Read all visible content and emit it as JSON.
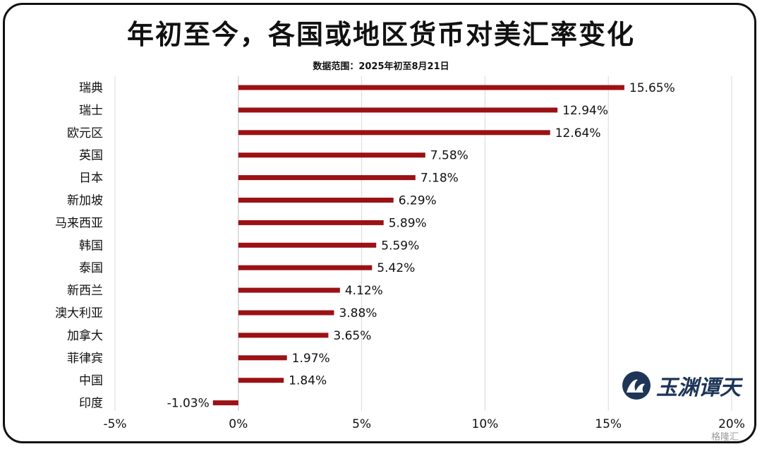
{
  "header": {
    "title": "年初至今，各国或地区货币对美汇率变化",
    "subtitle": "数据范围：2025年初至8月21日"
  },
  "brand": {
    "logo_text": "玉渊谭天",
    "watermark": "格隆汇"
  },
  "colors": {
    "bar": "#9b1114",
    "grid": "#d9d9d9",
    "text": "#111111",
    "logo": "#1e3557"
  },
  "chart_data": {
    "type": "bar",
    "orientation": "horizontal",
    "title": "年初至今，各国或地区货币对美汇率变化",
    "subtitle": "数据范围：2025年初至8月21日",
    "categories": [
      "瑞典",
      "瑞士",
      "欧元区",
      "英国",
      "日本",
      "新加坡",
      "马来西亚",
      "韩国",
      "泰国",
      "新西兰",
      "澳大利亚",
      "加拿大",
      "菲律宾",
      "中国",
      "印度"
    ],
    "values": [
      15.65,
      12.94,
      12.64,
      7.58,
      7.18,
      6.29,
      5.89,
      5.59,
      5.42,
      4.12,
      3.88,
      3.65,
      1.97,
      1.84,
      -1.03
    ],
    "value_labels": [
      "15.65%",
      "12.94%",
      "12.64%",
      "7.58%",
      "7.18%",
      "6.29%",
      "5.89%",
      "5.59%",
      "5.42%",
      "4.12%",
      "3.88%",
      "3.65%",
      "1.97%",
      "1.84%",
      "-1.03%"
    ],
    "xlim": [
      -5,
      20
    ],
    "xticks": [
      -5,
      0,
      5,
      10,
      15,
      20
    ],
    "xtick_labels": [
      "-5%",
      "0%",
      "5%",
      "10%",
      "15%",
      "20%"
    ],
    "grid": true,
    "legend": "none"
  }
}
